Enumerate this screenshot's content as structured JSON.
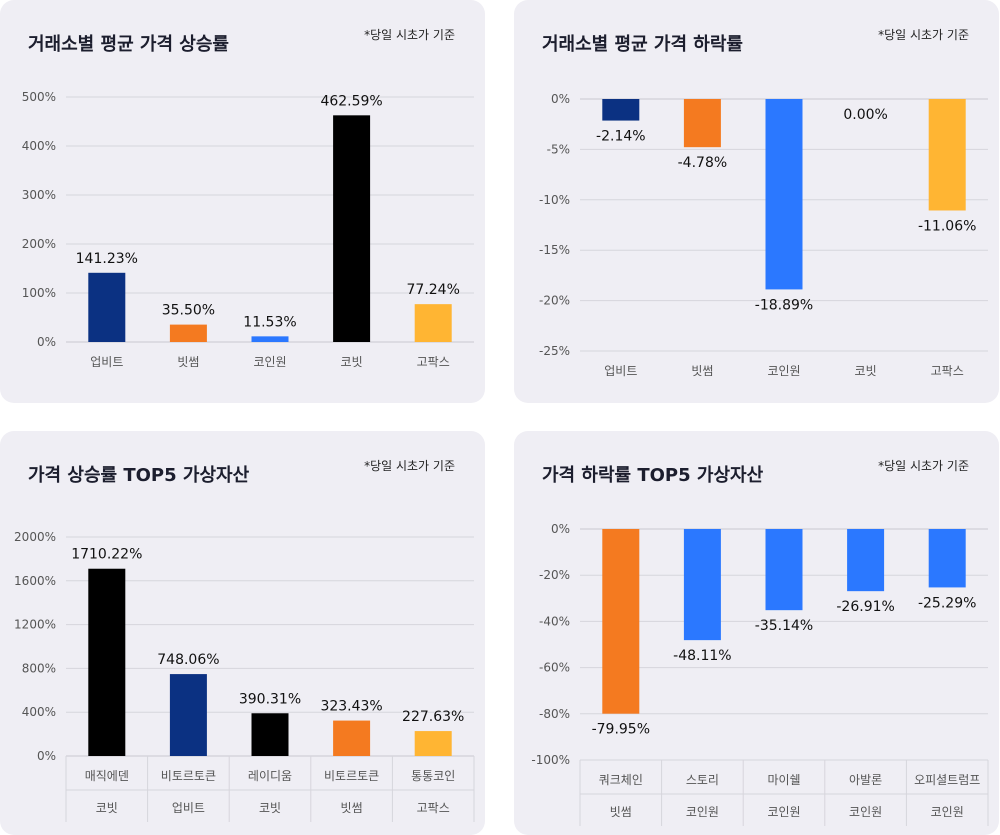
{
  "chart_data": [
    {
      "type": "bar",
      "title": "거래소별 평균 가격 상승률",
      "note": "*당일 시초가 기준",
      "categories": [
        "업비트",
        "빗썸",
        "코인원",
        "코빗",
        "고팍스"
      ],
      "values": [
        141.23,
        35.5,
        11.53,
        462.59,
        77.24
      ],
      "value_labels": [
        "141.23%",
        "35.50%",
        "11.53%",
        "462.59%",
        "77.24%"
      ],
      "colors": [
        "#0b3182",
        "#f47a20",
        "#2b78ff",
        "#000000",
        "#ffb533"
      ],
      "ylim": [
        0,
        500
      ],
      "yticks": [
        0,
        100,
        200,
        300,
        400,
        500
      ],
      "ytick_labels": [
        "0%",
        "100%",
        "200%",
        "300%",
        "400%",
        "500%"
      ],
      "grid": true
    },
    {
      "type": "bar",
      "title": "거래소별 평균 가격 하락률",
      "note": "*당일 시초가 기준",
      "categories": [
        "업비트",
        "빗썸",
        "코인원",
        "코빗",
        "고팍스"
      ],
      "values": [
        -2.14,
        -4.78,
        -18.89,
        0.0,
        -11.06
      ],
      "value_labels": [
        "-2.14%",
        "-4.78%",
        "-18.89%",
        "0.00%",
        "-11.06%"
      ],
      "colors": [
        "#0b3182",
        "#f47a20",
        "#2b78ff",
        "#000000",
        "#ffb533"
      ],
      "ylim": [
        -25,
        0
      ],
      "yticks": [
        0,
        -5,
        -10,
        -15,
        -20,
        -25
      ],
      "ytick_labels": [
        "0%",
        "-5%",
        "-10%",
        "-15%",
        "-20%",
        "-25%"
      ],
      "grid": true
    },
    {
      "type": "bar",
      "title": "가격 상승률 TOP5 가상자산",
      "note": "*당일 시초가 기준",
      "categories": [
        "매직에덴",
        "비토르토큰",
        "레이디움",
        "비토르토큰",
        "통통코인"
      ],
      "exchanges": [
        "코빗",
        "업비트",
        "코빗",
        "빗썸",
        "고팍스"
      ],
      "values": [
        1710.22,
        748.06,
        390.31,
        323.43,
        227.63
      ],
      "value_labels": [
        "1710.22%",
        "748.06%",
        "390.31%",
        "323.43%",
        "227.63%"
      ],
      "colors": [
        "#000000",
        "#0b3182",
        "#000000",
        "#f47a20",
        "#ffb533"
      ],
      "ylim": [
        0,
        2000
      ],
      "yticks": [
        0,
        400,
        800,
        1200,
        1600,
        2000
      ],
      "ytick_labels": [
        "0%",
        "400%",
        "800%",
        "1200%",
        "1600%",
        "2000%"
      ],
      "grid": true
    },
    {
      "type": "bar",
      "title": "가격 하락률 TOP5 가상자산",
      "note": "*당일 시초가 기준",
      "categories": [
        "쿼크체인",
        "스토리",
        "마이쉘",
        "아발론",
        "오피셜트럼프"
      ],
      "exchanges": [
        "빗썸",
        "코인원",
        "코인원",
        "코인원",
        "코인원"
      ],
      "values": [
        -79.95,
        -48.11,
        -35.14,
        -26.91,
        -25.29
      ],
      "value_labels": [
        "-79.95%",
        "-48.11%",
        "-35.14%",
        "-26.91%",
        "-25.29%"
      ],
      "colors": [
        "#f47a20",
        "#2b78ff",
        "#2b78ff",
        "#2b78ff",
        "#2b78ff"
      ],
      "ylim": [
        -100,
        0
      ],
      "yticks": [
        0,
        -20,
        -40,
        -60,
        -80,
        -100
      ],
      "ytick_labels": [
        "0%",
        "-20%",
        "-40%",
        "-60%",
        "-80%",
        "-100%"
      ],
      "grid": true
    }
  ]
}
